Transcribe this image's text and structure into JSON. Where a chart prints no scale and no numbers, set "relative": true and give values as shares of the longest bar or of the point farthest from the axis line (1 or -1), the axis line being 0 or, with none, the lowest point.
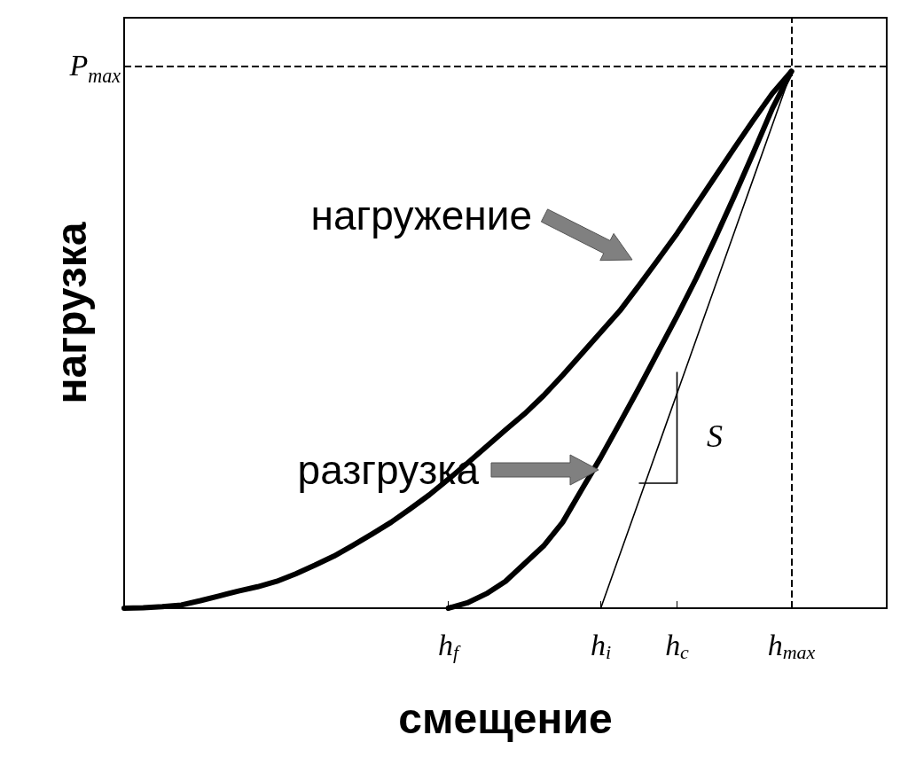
{
  "chart_data": {
    "type": "line",
    "relative": true,
    "xlabel": "смещение",
    "ylabel": "нагрузка",
    "categories": [
      null,
      null,
      null,
      null,
      null,
      null,
      null,
      null,
      null,
      null,
      null,
      null,
      null,
      null,
      null,
      null,
      null,
      "h$_{f}$",
      null,
      null,
      null,
      null,
      null,
      null,
      null,
      "h$_{i}$",
      null,
      null,
      null,
      "h$_{c}$",
      null,
      null,
      null,
      null,
      null,
      "h$_{max}$",
      null,
      null,
      null,
      null,
      null
    ],
    "marker": "none",
    "series": [
      {
        "color": "#000000",
        "values": [
          0,
          0.001,
          0.003,
          0.006,
          0.014,
          0.023,
          0.032,
          0.04,
          0.05,
          0.064,
          0.08,
          0.097,
          0.117,
          0.138,
          0.16,
          0.185,
          0.211,
          0.24,
          0.27,
          0.301,
          0.332,
          0.362,
          0.396,
          0.434,
          0.474,
          0.514,
          0.554,
          0.601,
          0.649,
          0.698,
          0.751,
          0.804,
          0.857,
          0.909,
          0.959,
          1,
          null,
          null,
          null,
          null,
          null
        ]
      },
      {
        "color": "#000000",
        "values": [
          null,
          null,
          null,
          null,
          null,
          null,
          null,
          null,
          null,
          null,
          null,
          null,
          null,
          null,
          null,
          null,
          null,
          0,
          0.01,
          0.027,
          0.05,
          0.083,
          0.116,
          0.16,
          0.221,
          0.281,
          0.345,
          0.41,
          0.477,
          0.544,
          0.614,
          0.689,
          0.767,
          0.848,
          0.931,
          1,
          null,
          null,
          null,
          null,
          null
        ]
      },
      {
        "color": "#000000",
        "values": [
          null,
          null,
          null,
          null,
          null,
          null,
          null,
          null,
          null,
          null,
          null,
          null,
          null,
          null,
          null,
          null,
          null,
          null,
          null,
          null,
          null,
          null,
          null,
          null,
          null,
          0,
          0.1,
          0.2,
          0.3,
          0.4,
          0.5,
          0.6,
          0.7,
          0.8,
          0.9,
          1,
          null,
          null,
          null,
          null,
          null
        ]
      }
    ],
    "ref_lines": [
      {
        "axis": "y",
        "value": 1.012,
        "label": "P$_{max}$",
        "line_style": "dashed"
      },
      {
        "axis": "x",
        "value": "h$_{max}$",
        "line_style": "dashed"
      }
    ],
    "annotations": [
      "нагружение",
      "разгрузка",
      "S"
    ]
  }
}
